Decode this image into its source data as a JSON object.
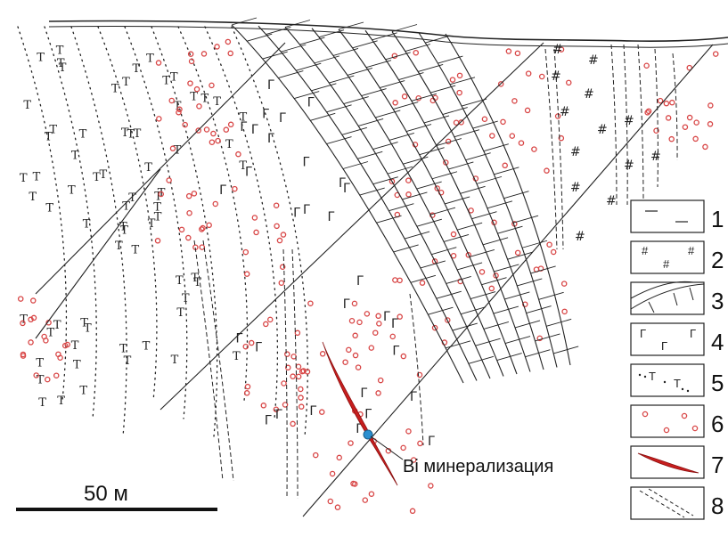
{
  "annotation": {
    "label": "Bi минерализация",
    "marker_color": "#2a8fd0"
  },
  "scale_bar": {
    "label": "50 м"
  },
  "legend": {
    "items": [
      {
        "number": "1",
        "pattern": "dash-symbol"
      },
      {
        "number": "2",
        "pattern": "hash-symbol"
      },
      {
        "number": "3",
        "pattern": "brick-limestone"
      },
      {
        "number": "4",
        "pattern": "gamma-symbol"
      },
      {
        "number": "5",
        "pattern": "t-dots"
      },
      {
        "number": "6",
        "pattern": "red-circles"
      },
      {
        "number": "7",
        "pattern": "red-lens"
      },
      {
        "number": "8",
        "pattern": "dashed-dike"
      }
    ]
  },
  "symbols": {
    "gamma": "Г",
    "t": "T",
    "hash": "#"
  },
  "colors": {
    "ink": "#222222",
    "circle": "#d84545",
    "ore": "#c81e1e",
    "marker": "#2a8fd0"
  }
}
